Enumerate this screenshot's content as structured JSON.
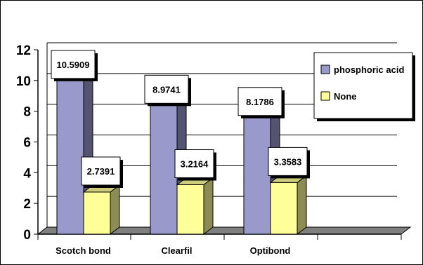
{
  "chart_data": {
    "type": "bar",
    "title": "",
    "xlabel": "",
    "ylabel": "",
    "categories": [
      "Scotch bond",
      "Clearfil",
      "Optibond"
    ],
    "series": [
      {
        "name": "phosphoric acid",
        "values": [
          10.5909,
          8.9741,
          8.1786
        ],
        "labels": [
          "10.5909",
          "8.9741",
          "8.1786"
        ],
        "color": "#9999cc"
      },
      {
        "name": "None",
        "values": [
          2.7391,
          3.2164,
          3.3583
        ],
        "labels": [
          "2.7391",
          "3.2164",
          "3.3583"
        ],
        "color": "#ffff99"
      }
    ],
    "ylim": [
      0,
      12
    ],
    "yticks": [
      "0",
      "2",
      "4",
      "6",
      "8",
      "10",
      "12"
    ],
    "grid": true,
    "legend": "top-right",
    "style": "3d-bars"
  }
}
